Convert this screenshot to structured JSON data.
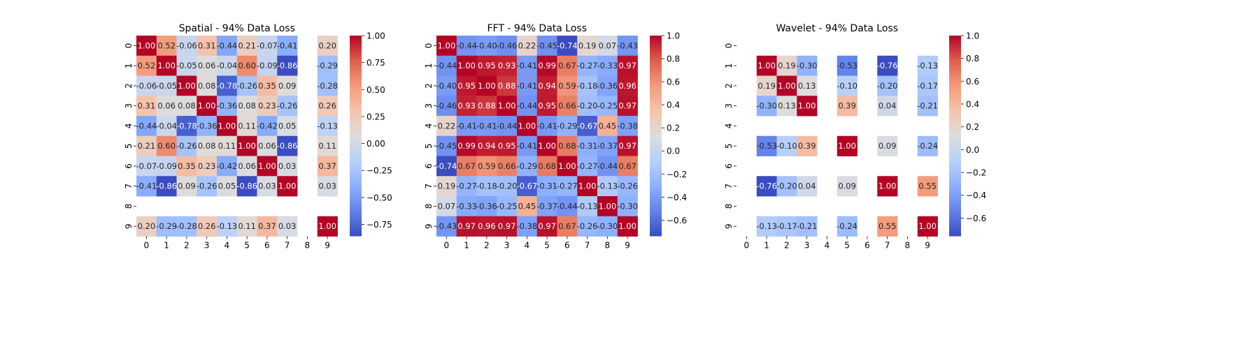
{
  "chart_data": [
    {
      "type": "heatmap",
      "title": "Spatial - 94% Data Loss",
      "x_categories": [
        "0",
        "1",
        "2",
        "3",
        "4",
        "5",
        "6",
        "7",
        "8",
        "9"
      ],
      "y_categories": [
        "0",
        "1",
        "2",
        "3",
        "4",
        "5",
        "6",
        "7",
        "8",
        "9"
      ],
      "values": [
        [
          1.0,
          0.52,
          -0.06,
          0.31,
          -0.44,
          0.21,
          -0.07,
          -0.41,
          null,
          0.2
        ],
        [
          0.52,
          1.0,
          -0.05,
          0.06,
          -0.04,
          0.6,
          -0.09,
          -0.86,
          null,
          -0.29
        ],
        [
          -0.06,
          -0.05,
          1.0,
          0.08,
          -0.78,
          -0.26,
          0.35,
          0.09,
          null,
          -0.28
        ],
        [
          0.31,
          0.06,
          0.08,
          1.0,
          -0.36,
          0.08,
          0.23,
          -0.26,
          null,
          0.26
        ],
        [
          -0.44,
          -0.04,
          -0.78,
          -0.36,
          1.0,
          0.11,
          -0.42,
          0.05,
          null,
          -0.13
        ],
        [
          0.21,
          0.6,
          -0.26,
          0.08,
          0.11,
          1.0,
          0.06,
          -0.86,
          null,
          0.11
        ],
        [
          -0.07,
          -0.09,
          0.35,
          0.23,
          -0.42,
          0.06,
          1.0,
          0.03,
          null,
          0.37
        ],
        [
          -0.41,
          -0.86,
          0.09,
          -0.26,
          0.05,
          -0.86,
          0.03,
          1.0,
          null,
          0.03
        ],
        [
          null,
          null,
          null,
          null,
          null,
          null,
          null,
          null,
          null,
          null
        ],
        [
          0.2,
          -0.29,
          -0.28,
          0.26,
          -0.13,
          0.11,
          0.37,
          0.03,
          null,
          1.0
        ]
      ],
      "vmin": -0.86,
      "vmax": 1.0,
      "colorbar_ticks": [
        "1.00",
        "0.75",
        "0.50",
        "0.25",
        "0.00",
        "−0.25",
        "−0.50",
        "−0.75"
      ],
      "colorbar_tick_values": [
        1.0,
        0.75,
        0.5,
        0.25,
        0.0,
        -0.25,
        -0.5,
        -0.75
      ],
      "colormap": "coolwarm",
      "annotated": true
    },
    {
      "type": "heatmap",
      "title": "FFT - 94% Data Loss",
      "x_categories": [
        "0",
        "1",
        "2",
        "3",
        "4",
        "5",
        "6",
        "7",
        "8",
        "9"
      ],
      "y_categories": [
        "0",
        "1",
        "2",
        "3",
        "4",
        "5",
        "6",
        "7",
        "8",
        "9"
      ],
      "values": [
        [
          1.0,
          -0.44,
          -0.4,
          -0.46,
          0.22,
          -0.45,
          -0.74,
          0.19,
          0.07,
          -0.43
        ],
        [
          -0.44,
          1.0,
          0.95,
          0.93,
          -0.41,
          0.99,
          0.67,
          -0.27,
          -0.33,
          0.97
        ],
        [
          -0.4,
          0.95,
          1.0,
          0.88,
          -0.41,
          0.94,
          0.59,
          -0.18,
          -0.36,
          0.96
        ],
        [
          -0.46,
          0.93,
          0.88,
          1.0,
          -0.44,
          0.95,
          0.66,
          -0.2,
          -0.25,
          0.97
        ],
        [
          0.22,
          -0.41,
          -0.41,
          -0.44,
          1.0,
          -0.41,
          -0.29,
          -0.67,
          0.45,
          -0.38
        ],
        [
          -0.45,
          0.99,
          0.94,
          0.95,
          -0.41,
          1.0,
          0.68,
          -0.31,
          -0.37,
          0.97
        ],
        [
          -0.74,
          0.67,
          0.59,
          0.66,
          -0.29,
          0.68,
          1.0,
          -0.27,
          -0.44,
          0.67
        ],
        [
          0.19,
          -0.27,
          -0.18,
          -0.2,
          -0.67,
          -0.31,
          -0.27,
          1.0,
          -0.13,
          -0.26
        ],
        [
          0.07,
          -0.33,
          -0.36,
          -0.25,
          0.45,
          -0.37,
          -0.44,
          -0.13,
          1.0,
          -0.3
        ],
        [
          -0.43,
          0.97,
          0.96,
          0.97,
          -0.38,
          0.97,
          0.67,
          -0.26,
          -0.3,
          1.0
        ]
      ],
      "vmin": -0.74,
      "vmax": 1.0,
      "colorbar_ticks": [
        "1.0",
        "0.8",
        "0.6",
        "0.4",
        "0.2",
        "0.0",
        "−0.2",
        "−0.4",
        "−0.6"
      ],
      "colorbar_tick_values": [
        1.0,
        0.8,
        0.6,
        0.4,
        0.2,
        0.0,
        -0.2,
        -0.4,
        -0.6
      ],
      "colormap": "coolwarm",
      "annotated": true
    },
    {
      "type": "heatmap",
      "title": "Wavelet - 94% Data Loss",
      "x_categories": [
        "0",
        "1",
        "2",
        "3",
        "4",
        "5",
        "6",
        "7",
        "8",
        "9"
      ],
      "y_categories": [
        "0",
        "1",
        "2",
        "3",
        "4",
        "5",
        "6",
        "7",
        "8",
        "9"
      ],
      "values": [
        [
          null,
          null,
          null,
          null,
          null,
          null,
          null,
          null,
          null,
          null
        ],
        [
          null,
          1.0,
          0.19,
          -0.3,
          null,
          -0.53,
          null,
          -0.76,
          null,
          -0.13
        ],
        [
          null,
          0.19,
          1.0,
          0.13,
          null,
          -0.1,
          null,
          -0.2,
          null,
          -0.17
        ],
        [
          null,
          -0.3,
          0.13,
          1.0,
          null,
          0.39,
          null,
          0.04,
          null,
          -0.21
        ],
        [
          null,
          null,
          null,
          null,
          null,
          null,
          null,
          null,
          null,
          null
        ],
        [
          null,
          -0.53,
          -0.1,
          0.39,
          null,
          1.0,
          null,
          0.09,
          null,
          -0.24
        ],
        [
          null,
          null,
          null,
          null,
          null,
          null,
          null,
          null,
          null,
          null
        ],
        [
          null,
          -0.76,
          -0.2,
          0.04,
          null,
          0.09,
          null,
          1.0,
          null,
          0.55
        ],
        [
          null,
          null,
          null,
          null,
          null,
          null,
          null,
          null,
          null,
          null
        ],
        [
          null,
          -0.13,
          -0.17,
          -0.21,
          null,
          -0.24,
          null,
          0.55,
          null,
          1.0
        ]
      ],
      "vmin": -0.76,
      "vmax": 1.0,
      "colorbar_ticks": [
        "1.0",
        "0.8",
        "0.6",
        "0.4",
        "0.2",
        "0.0",
        "−0.2",
        "−0.4",
        "−0.6"
      ],
      "colorbar_tick_values": [
        1.0,
        0.8,
        0.6,
        0.4,
        0.2,
        0.0,
        -0.2,
        -0.4,
        -0.6
      ],
      "colormap": "coolwarm",
      "annotated": true
    }
  ]
}
